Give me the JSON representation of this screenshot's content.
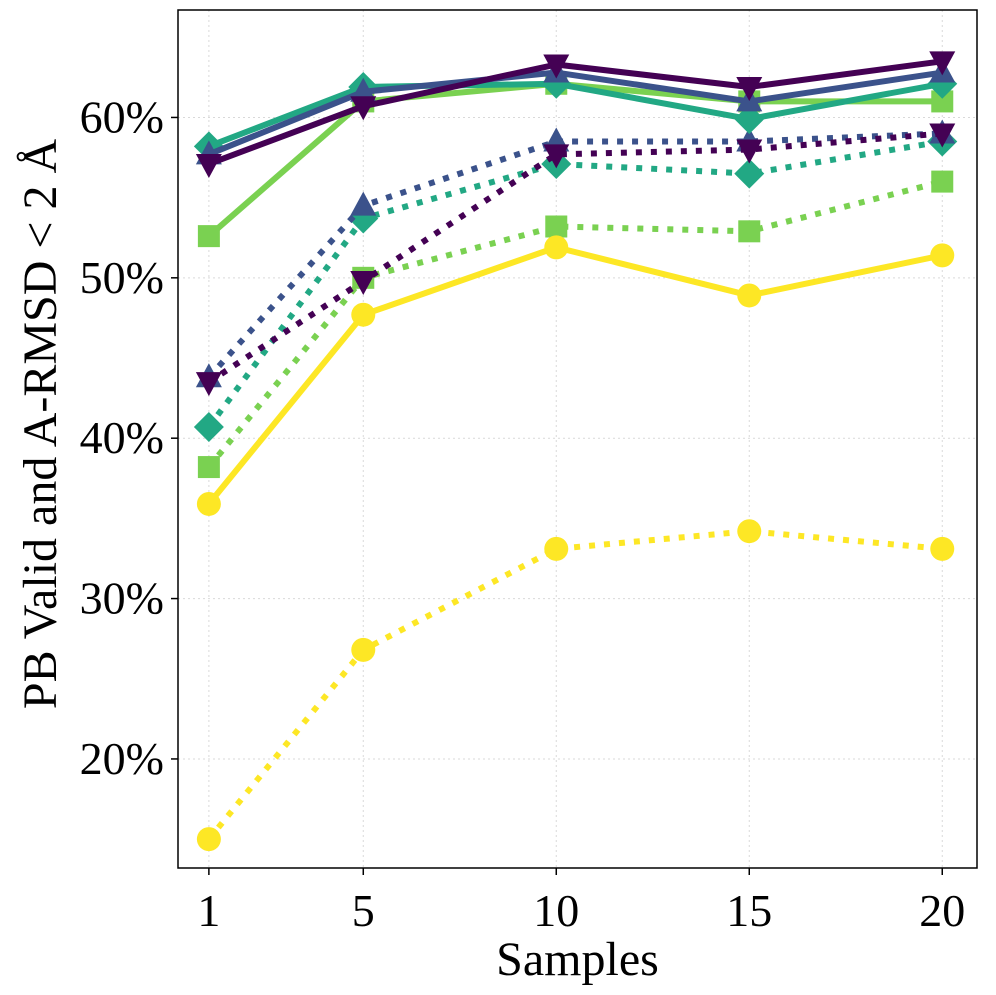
{
  "chart_data": {
    "type": "line",
    "title": "",
    "xlabel": "Samples",
    "ylabel": "PB Valid and A-RMSD < 2 Å",
    "x": [
      1,
      5,
      10,
      15,
      20
    ],
    "x_ticks": [
      1,
      5,
      10,
      15,
      20
    ],
    "x_tick_labels": [
      "1",
      "5",
      "10",
      "15",
      "20"
    ],
    "xlim": [
      0.2,
      20.9
    ],
    "ylim": [
      13.2,
      66.7
    ],
    "y_ticks": [
      20,
      30,
      40,
      50,
      60
    ],
    "y_tick_labels": [
      "20%",
      "30%",
      "40%",
      "50%",
      "60%"
    ],
    "grid": true,
    "series": [
      {
        "name": "yellow-circle-solid",
        "color": "#fde725",
        "marker": "circle",
        "linestyle": "solid",
        "values": [
          35.9,
          47.7,
          51.9,
          48.9,
          51.4
        ]
      },
      {
        "name": "yellow-circle-dotted",
        "color": "#fde725",
        "marker": "circle",
        "linestyle": "dotted",
        "values": [
          15.0,
          26.8,
          33.1,
          34.2,
          33.1
        ]
      },
      {
        "name": "green-square-solid",
        "color": "#7ad151",
        "marker": "square",
        "linestyle": "solid",
        "values": [
          52.6,
          61.0,
          62.1,
          61.0,
          61.0
        ]
      },
      {
        "name": "green-square-dotted",
        "color": "#7ad151",
        "marker": "square",
        "linestyle": "dotted",
        "values": [
          38.2,
          50.0,
          53.2,
          52.9,
          56.0
        ]
      },
      {
        "name": "teal-diamond-solid",
        "color": "#22a884",
        "marker": "diamond",
        "linestyle": "solid",
        "values": [
          58.2,
          61.9,
          62.1,
          59.9,
          62.1
        ]
      },
      {
        "name": "teal-diamond-dotted",
        "color": "#22a884",
        "marker": "diamond",
        "linestyle": "dotted",
        "values": [
          40.7,
          53.7,
          57.1,
          56.5,
          58.5
        ]
      },
      {
        "name": "blue-triangle-up-solid",
        "color": "#3b528b",
        "marker": "triangle-up",
        "linestyle": "solid",
        "values": [
          57.7,
          61.6,
          62.8,
          61.0,
          62.8
        ]
      },
      {
        "name": "blue-triangle-up-dotted",
        "color": "#3b528b",
        "marker": "triangle-up",
        "linestyle": "dotted",
        "values": [
          43.8,
          54.5,
          58.5,
          58.5,
          59.0
        ]
      },
      {
        "name": "purple-triangle-down-solid",
        "color": "#440154",
        "marker": "triangle-down",
        "linestyle": "solid",
        "values": [
          57.1,
          60.7,
          63.3,
          61.9,
          63.5
        ]
      },
      {
        "name": "purple-triangle-down-dotted",
        "color": "#440154",
        "marker": "triangle-down",
        "linestyle": "dotted",
        "values": [
          43.5,
          49.8,
          57.7,
          58.0,
          59.0
        ]
      }
    ]
  }
}
